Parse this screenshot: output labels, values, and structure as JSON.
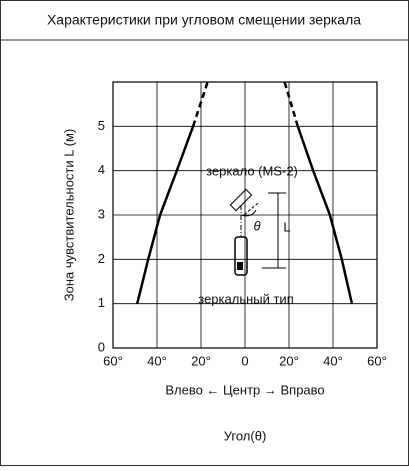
{
  "chart_data": {
    "type": "line",
    "title": "Характеристики при угловом смещении зеркала",
    "ylabel": "Зона чувствительности L (м)",
    "xlabel": "Угол(θ)",
    "direction_label": "Влево ← Центр → Вправо",
    "annotations": [
      "зеркало (MS-2)",
      "θ",
      "L",
      "зеркальный тип"
    ],
    "xlim": [
      -60,
      60
    ],
    "ylim": [
      0,
      6
    ],
    "xticks": [
      {
        "value": -60,
        "label": "60°"
      },
      {
        "value": -40,
        "label": "40°"
      },
      {
        "value": -20,
        "label": "20°"
      },
      0,
      {
        "value": 20,
        "label": "20°"
      },
      {
        "value": 40,
        "label": "40°"
      },
      {
        "value": 60,
        "label": "60°"
      }
    ],
    "yticks": [
      0,
      1,
      2,
      3,
      4,
      5
    ],
    "grid": true,
    "series": [
      {
        "color": "#000",
        "style": "solid",
        "x": [
          -49,
          -44,
          -38.6,
          -31,
          -23.6
        ],
        "values": [
          1,
          2,
          3,
          4,
          5
        ]
      },
      {
        "color": "#000",
        "style": "dashed",
        "x": [
          -23.6,
          -17
        ],
        "values": [
          5,
          6
        ]
      },
      {
        "color": "#000",
        "style": "solid",
        "x": [
          48.6,
          44,
          38.6,
          31,
          24
        ],
        "values": [
          1,
          2,
          3,
          4,
          5
        ]
      },
      {
        "color": "#000",
        "style": "dashed",
        "x": [
          24,
          18
        ],
        "values": [
          5,
          6
        ]
      }
    ]
  }
}
